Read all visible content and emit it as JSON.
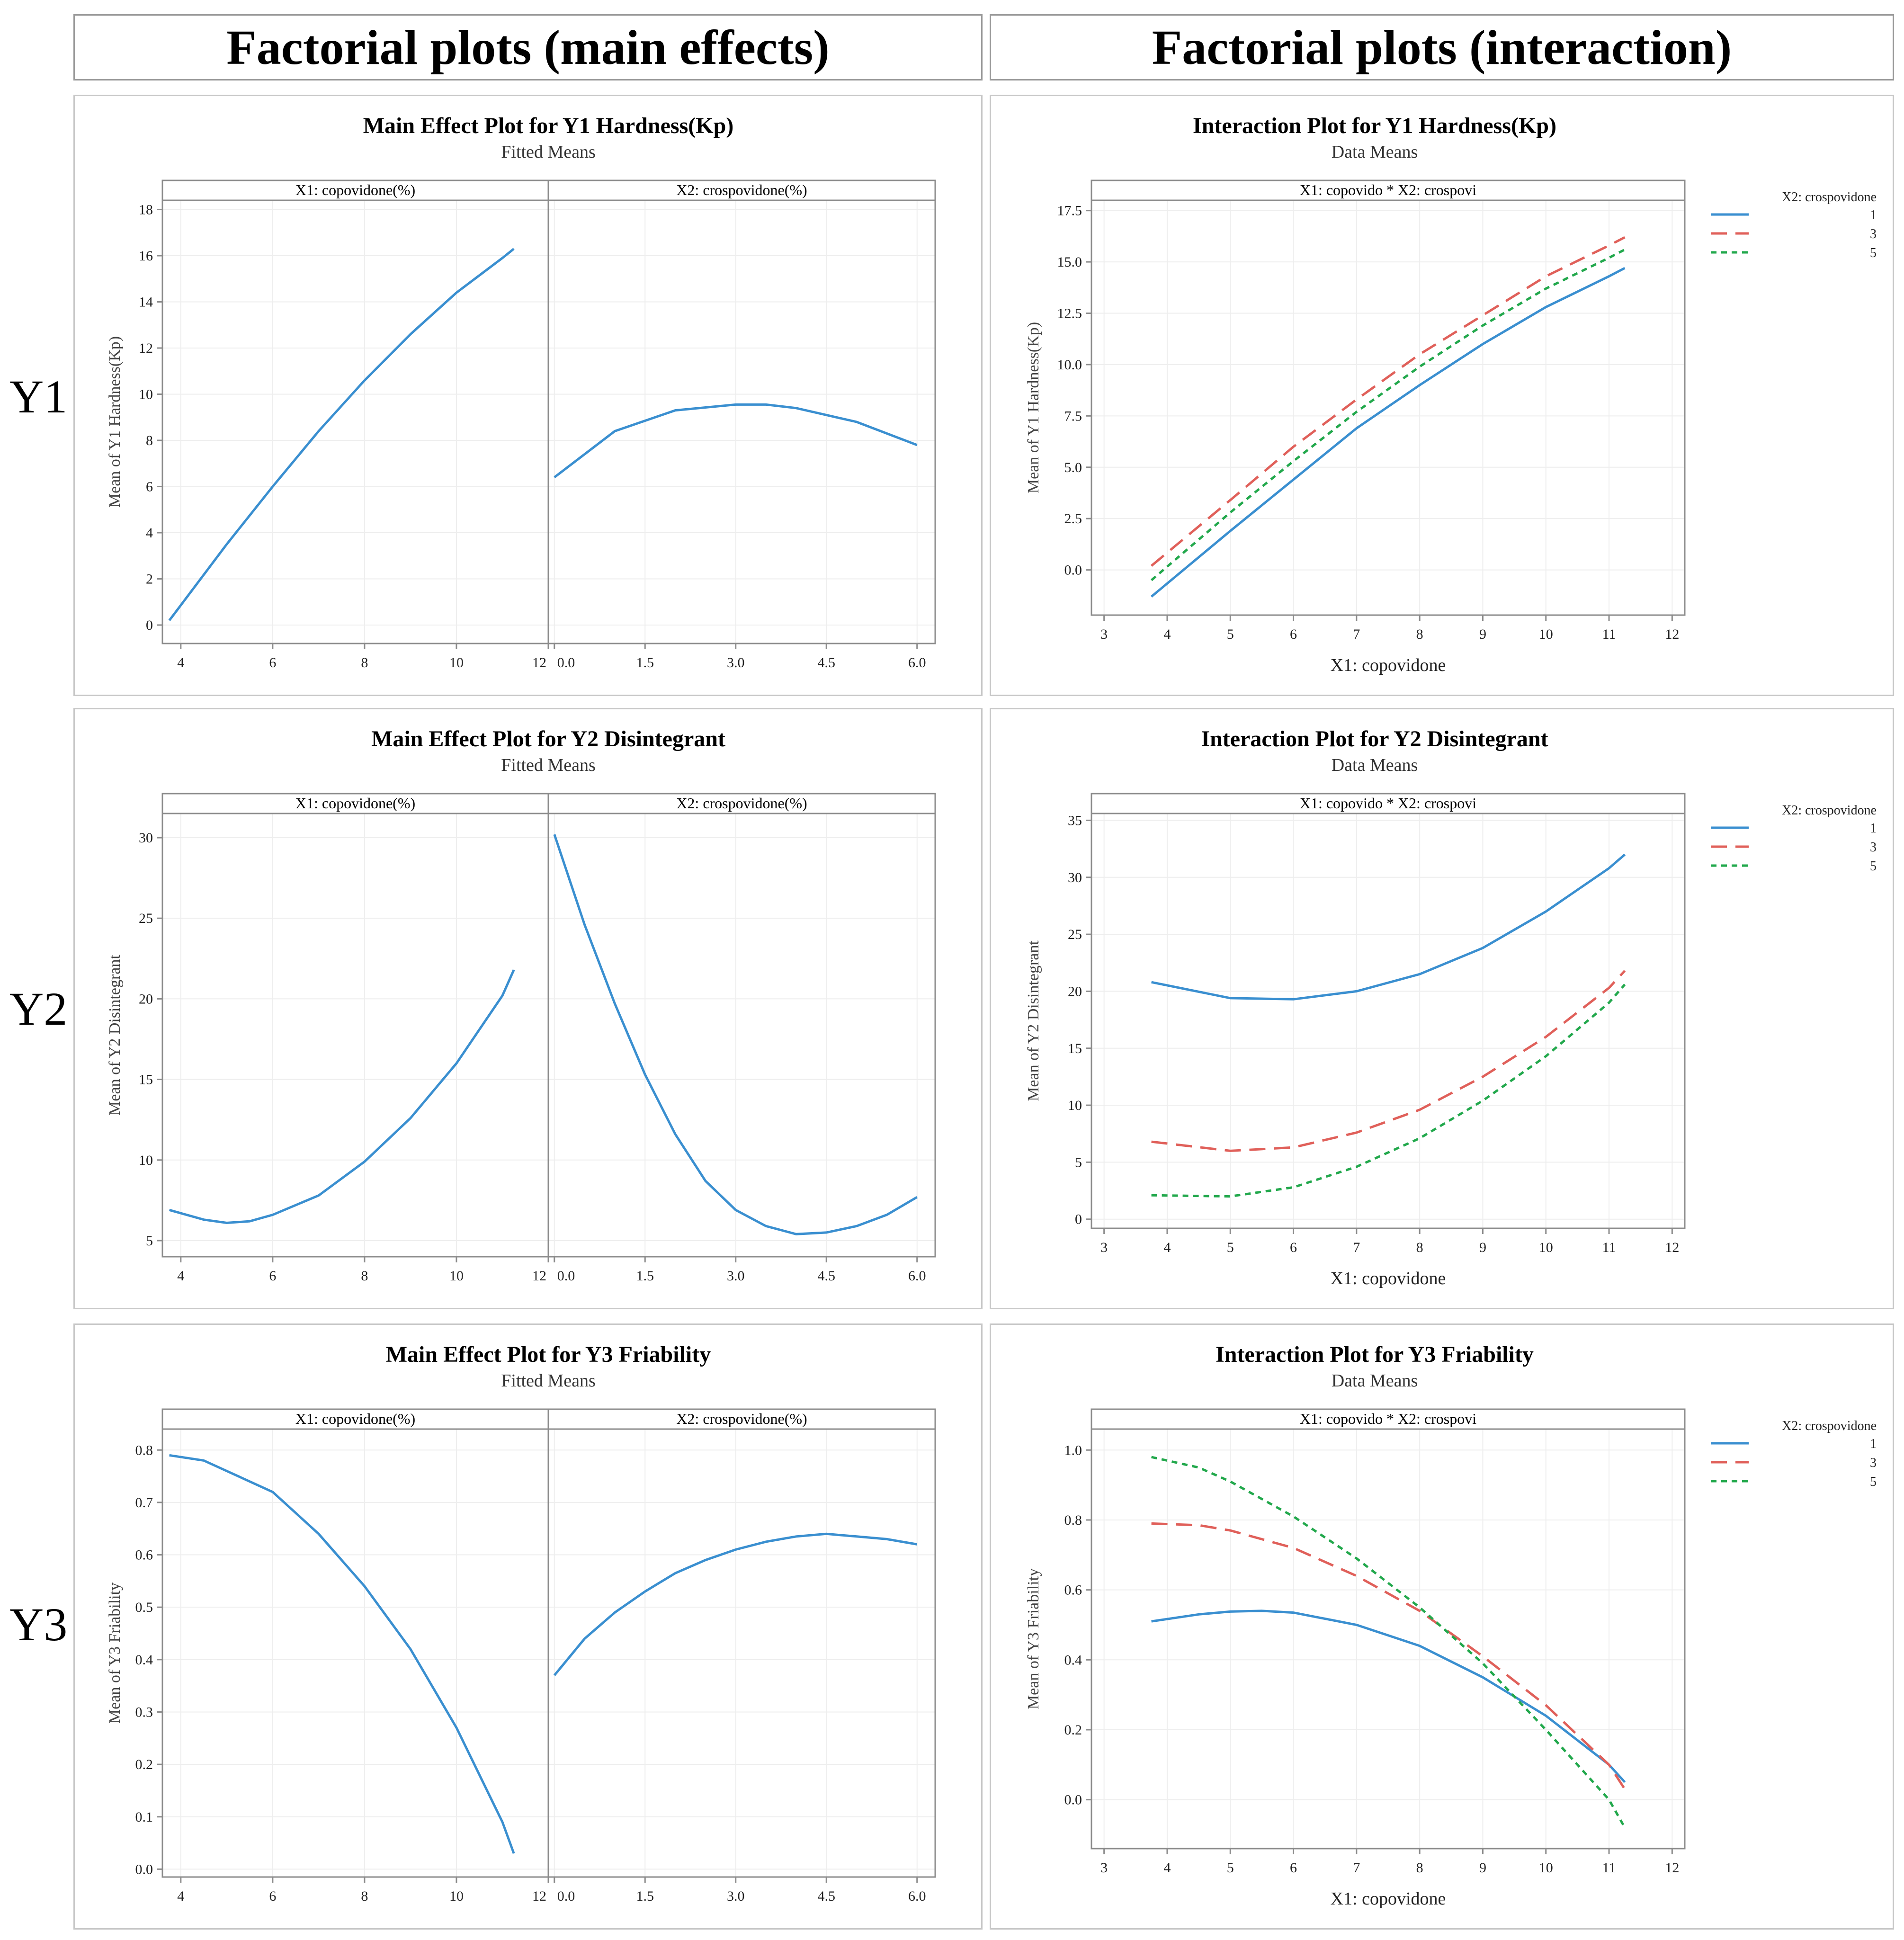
{
  "headers": {
    "left": "Factorial plots (main effects)",
    "right": "Factorial plots (interaction)"
  },
  "row_labels": [
    "Y1",
    "Y2",
    "Y3"
  ],
  "colors": {
    "series_1": "#3a8fd0",
    "series_3": "#e0605a",
    "series_5": "#22a84c",
    "grid": "#eeeeee",
    "frame": "#8c8c8c"
  },
  "chart_data": [
    {
      "type": "line",
      "title": "Main Effect Plot for Y1 Hardness(Kp)",
      "subtitle": "Fitted Means",
      "ylabel": "Mean of Y1 Hardness(Kp)",
      "ylim": [
        -0.8,
        18.4
      ],
      "yticks": [
        0,
        2,
        4,
        6,
        8,
        10,
        12,
        14,
        16,
        18
      ],
      "grid": true,
      "facets": [
        {
          "label": "X1: copovidone(%)",
          "xlim": [
            3.6,
            12
          ],
          "xticks": [
            4,
            6,
            8,
            10,
            12
          ],
          "x": [
            3.75,
            5,
            6,
            7,
            8,
            9,
            10,
            11,
            11.25
          ],
          "y": [
            0.2,
            3.5,
            6.0,
            8.4,
            10.6,
            12.6,
            14.4,
            15.9,
            16.3
          ]
        },
        {
          "label": "X2: crospovidone(%)",
          "xlim": [
            -0.1,
            6.3
          ],
          "xticks": [
            0,
            1.5,
            3,
            4.5,
            6
          ],
          "xtick_labels": [
            "0.0",
            "1.5",
            "3.0",
            "4.5",
            "6.0"
          ],
          "x": [
            0,
            1,
            2,
            3,
            3.5,
            4,
            5,
            6
          ],
          "y": [
            6.4,
            8.4,
            9.3,
            9.55,
            9.55,
            9.4,
            8.8,
            7.8
          ]
        }
      ]
    },
    {
      "type": "line",
      "title": "Interaction Plot for Y1 Hardness(Kp)",
      "subtitle": "Data Means",
      "strip": "X1: copovido * X2: crospovi",
      "xlabel": "X1: copovidone",
      "ylabel": "Mean of Y1 Hardness(Kp)",
      "xlim": [
        2.8,
        12.2
      ],
      "xticks": [
        3,
        4,
        5,
        6,
        7,
        8,
        9,
        10,
        11,
        12
      ],
      "ylim": [
        -2.2,
        18
      ],
      "yticks": [
        0,
        2.5,
        5,
        7.5,
        10,
        12.5,
        15,
        17.5
      ],
      "ytick_labels": [
        "0.0",
        "2.5",
        "5.0",
        "7.5",
        "10.0",
        "12.5",
        "15.0",
        "17.5"
      ],
      "grid": true,
      "legend_title": "X2: crospovidone",
      "legend_position": "right",
      "series": [
        {
          "name": "1",
          "style": "solid",
          "x": [
            3.75,
            5,
            6,
            7,
            8,
            9,
            10,
            11,
            11.25
          ],
          "y": [
            -1.3,
            1.9,
            4.4,
            6.9,
            9.0,
            11.0,
            12.8,
            14.3,
            14.7
          ]
        },
        {
          "name": "3",
          "style": "dashed",
          "x": [
            3.75,
            5,
            6,
            7,
            8,
            9,
            10,
            11,
            11.25
          ],
          "y": [
            0.2,
            3.4,
            6.0,
            8.3,
            10.5,
            12.4,
            14.3,
            15.8,
            16.2
          ]
        },
        {
          "name": "5",
          "style": "dotted",
          "x": [
            3.75,
            5,
            6,
            7,
            8,
            9,
            10,
            11,
            11.25
          ],
          "y": [
            -0.5,
            2.8,
            5.3,
            7.7,
            9.9,
            11.9,
            13.7,
            15.2,
            15.6
          ]
        }
      ]
    },
    {
      "type": "line",
      "title": "Main Effect Plot for Y2 Disintegrant",
      "subtitle": "Fitted Means",
      "ylabel": "Mean of Y2 Disintegrant",
      "ylim": [
        4,
        31.5
      ],
      "yticks": [
        5,
        10,
        15,
        20,
        25,
        30
      ],
      "grid": true,
      "facets": [
        {
          "label": "X1: copovidone(%)",
          "xlim": [
            3.6,
            12
          ],
          "xticks": [
            4,
            6,
            8,
            10,
            12
          ],
          "x": [
            3.75,
            4.5,
            5,
            5.5,
            6,
            7,
            8,
            9,
            10,
            11,
            11.25
          ],
          "y": [
            6.9,
            6.3,
            6.1,
            6.2,
            6.6,
            7.8,
            9.9,
            12.6,
            16.0,
            20.2,
            21.8
          ]
        },
        {
          "label": "X2: crospovidone(%)",
          "xlim": [
            -0.1,
            6.3
          ],
          "xticks": [
            0,
            1.5,
            3,
            4.5,
            6
          ],
          "xtick_labels": [
            "0.0",
            "1.5",
            "3.0",
            "4.5",
            "6.0"
          ],
          "x": [
            0,
            0.5,
            1,
            1.5,
            2,
            2.5,
            3,
            3.5,
            4,
            4.5,
            5,
            5.5,
            6
          ],
          "y": [
            30.2,
            24.6,
            19.7,
            15.3,
            11.6,
            8.7,
            6.9,
            5.9,
            5.4,
            5.5,
            5.9,
            6.6,
            7.7
          ]
        }
      ]
    },
    {
      "type": "line",
      "title": "Interaction Plot for Y2 Disintegrant",
      "subtitle": "Data Means",
      "strip": "X1: copovido * X2: crospovi",
      "xlabel": "X1: copovidone",
      "ylabel": "Mean of  Y2 Disintegrant",
      "xlim": [
        2.8,
        12.2
      ],
      "xticks": [
        3,
        4,
        5,
        6,
        7,
        8,
        9,
        10,
        11,
        12
      ],
      "ylim": [
        -0.8,
        35.6
      ],
      "yticks": [
        0,
        5,
        10,
        15,
        20,
        25,
        30,
        35
      ],
      "grid": true,
      "legend_title": "X2: crospovidone",
      "legend_position": "right",
      "series": [
        {
          "name": "1",
          "style": "solid",
          "x": [
            3.75,
            5,
            6,
            7,
            8,
            9,
            10,
            11,
            11.25
          ],
          "y": [
            20.8,
            19.4,
            19.3,
            20.0,
            21.5,
            23.8,
            27.0,
            30.8,
            32.0
          ]
        },
        {
          "name": "3",
          "style": "dashed",
          "x": [
            3.75,
            5,
            6,
            7,
            8,
            9,
            10,
            11,
            11.25
          ],
          "y": [
            6.8,
            6.0,
            6.3,
            7.6,
            9.6,
            12.5,
            16.0,
            20.3,
            21.8
          ]
        },
        {
          "name": "5",
          "style": "dotted",
          "x": [
            3.75,
            5,
            6,
            7,
            8,
            9,
            10,
            11,
            11.25
          ],
          "y": [
            2.1,
            2.0,
            2.8,
            4.6,
            7.1,
            10.4,
            14.3,
            19.0,
            20.6
          ]
        }
      ]
    },
    {
      "type": "line",
      "title": "Main Effect Plot for Y3 Friability",
      "subtitle": "Fitted Means",
      "ylabel": "Mean of Y3 Friability",
      "ylim": [
        -0.015,
        0.84
      ],
      "yticks": [
        0,
        0.1,
        0.2,
        0.3,
        0.4,
        0.5,
        0.6,
        0.7,
        0.8
      ],
      "ytick_labels": [
        "0.0",
        "0.1",
        "0.2",
        "0.3",
        "0.4",
        "0.5",
        "0.6",
        "0.7",
        "0.8"
      ],
      "grid": true,
      "facets": [
        {
          "label": "X1: copovidone(%)",
          "xlim": [
            3.6,
            12
          ],
          "xticks": [
            4,
            6,
            8,
            10,
            12
          ],
          "x": [
            3.75,
            4.5,
            5,
            6,
            7,
            8,
            9,
            10,
            11,
            11.25
          ],
          "y": [
            0.79,
            0.78,
            0.76,
            0.72,
            0.64,
            0.54,
            0.42,
            0.27,
            0.09,
            0.03
          ]
        },
        {
          "label": "X2: crospovidone(%)",
          "xlim": [
            -0.1,
            6.3
          ],
          "xticks": [
            0,
            1.5,
            3,
            4.5,
            6
          ],
          "xtick_labels": [
            "0.0",
            "1.5",
            "3.0",
            "4.5",
            "6.0"
          ],
          "x": [
            0,
            0.5,
            1,
            1.5,
            2,
            2.5,
            3,
            3.5,
            4,
            4.5,
            5,
            5.5,
            6
          ],
          "y": [
            0.37,
            0.44,
            0.49,
            0.53,
            0.565,
            0.59,
            0.61,
            0.625,
            0.635,
            0.64,
            0.635,
            0.63,
            0.62
          ]
        }
      ]
    },
    {
      "type": "line",
      "title": "Interaction Plot for Y3 Friability",
      "subtitle": "Data Means",
      "strip": "X1: copovido * X2: crospovi",
      "xlabel": "X1: copovidone",
      "ylabel": "Mean of  Y3 Friability",
      "xlim": [
        2.8,
        12.2
      ],
      "xticks": [
        3,
        4,
        5,
        6,
        7,
        8,
        9,
        10,
        11,
        12
      ],
      "ylim": [
        -0.14,
        1.06
      ],
      "yticks": [
        0,
        0.2,
        0.4,
        0.6,
        0.8,
        1.0
      ],
      "ytick_labels": [
        "0.0",
        "0.2",
        "0.4",
        "0.6",
        "0.8",
        "1.0"
      ],
      "grid": true,
      "legend_title": "X2: crospovidone",
      "legend_position": "right",
      "series": [
        {
          "name": "1",
          "style": "solid",
          "x": [
            3.75,
            4.5,
            5,
            5.5,
            6,
            7,
            8,
            9,
            10,
            11,
            11.25
          ],
          "y": [
            0.51,
            0.53,
            0.538,
            0.54,
            0.535,
            0.5,
            0.44,
            0.35,
            0.24,
            0.1,
            0.05
          ]
        },
        {
          "name": "3",
          "style": "dashed",
          "x": [
            3.75,
            4.5,
            5,
            6,
            7,
            8,
            9,
            10,
            11,
            11.25
          ],
          "y": [
            0.79,
            0.785,
            0.77,
            0.72,
            0.64,
            0.54,
            0.41,
            0.27,
            0.1,
            0.03
          ]
        },
        {
          "name": "5",
          "style": "dotted",
          "x": [
            3.75,
            4.5,
            5,
            6,
            7,
            8,
            9,
            10,
            11,
            11.25
          ],
          "y": [
            0.98,
            0.95,
            0.91,
            0.81,
            0.69,
            0.55,
            0.39,
            0.2,
            0.0,
            -0.08
          ]
        }
      ]
    }
  ]
}
